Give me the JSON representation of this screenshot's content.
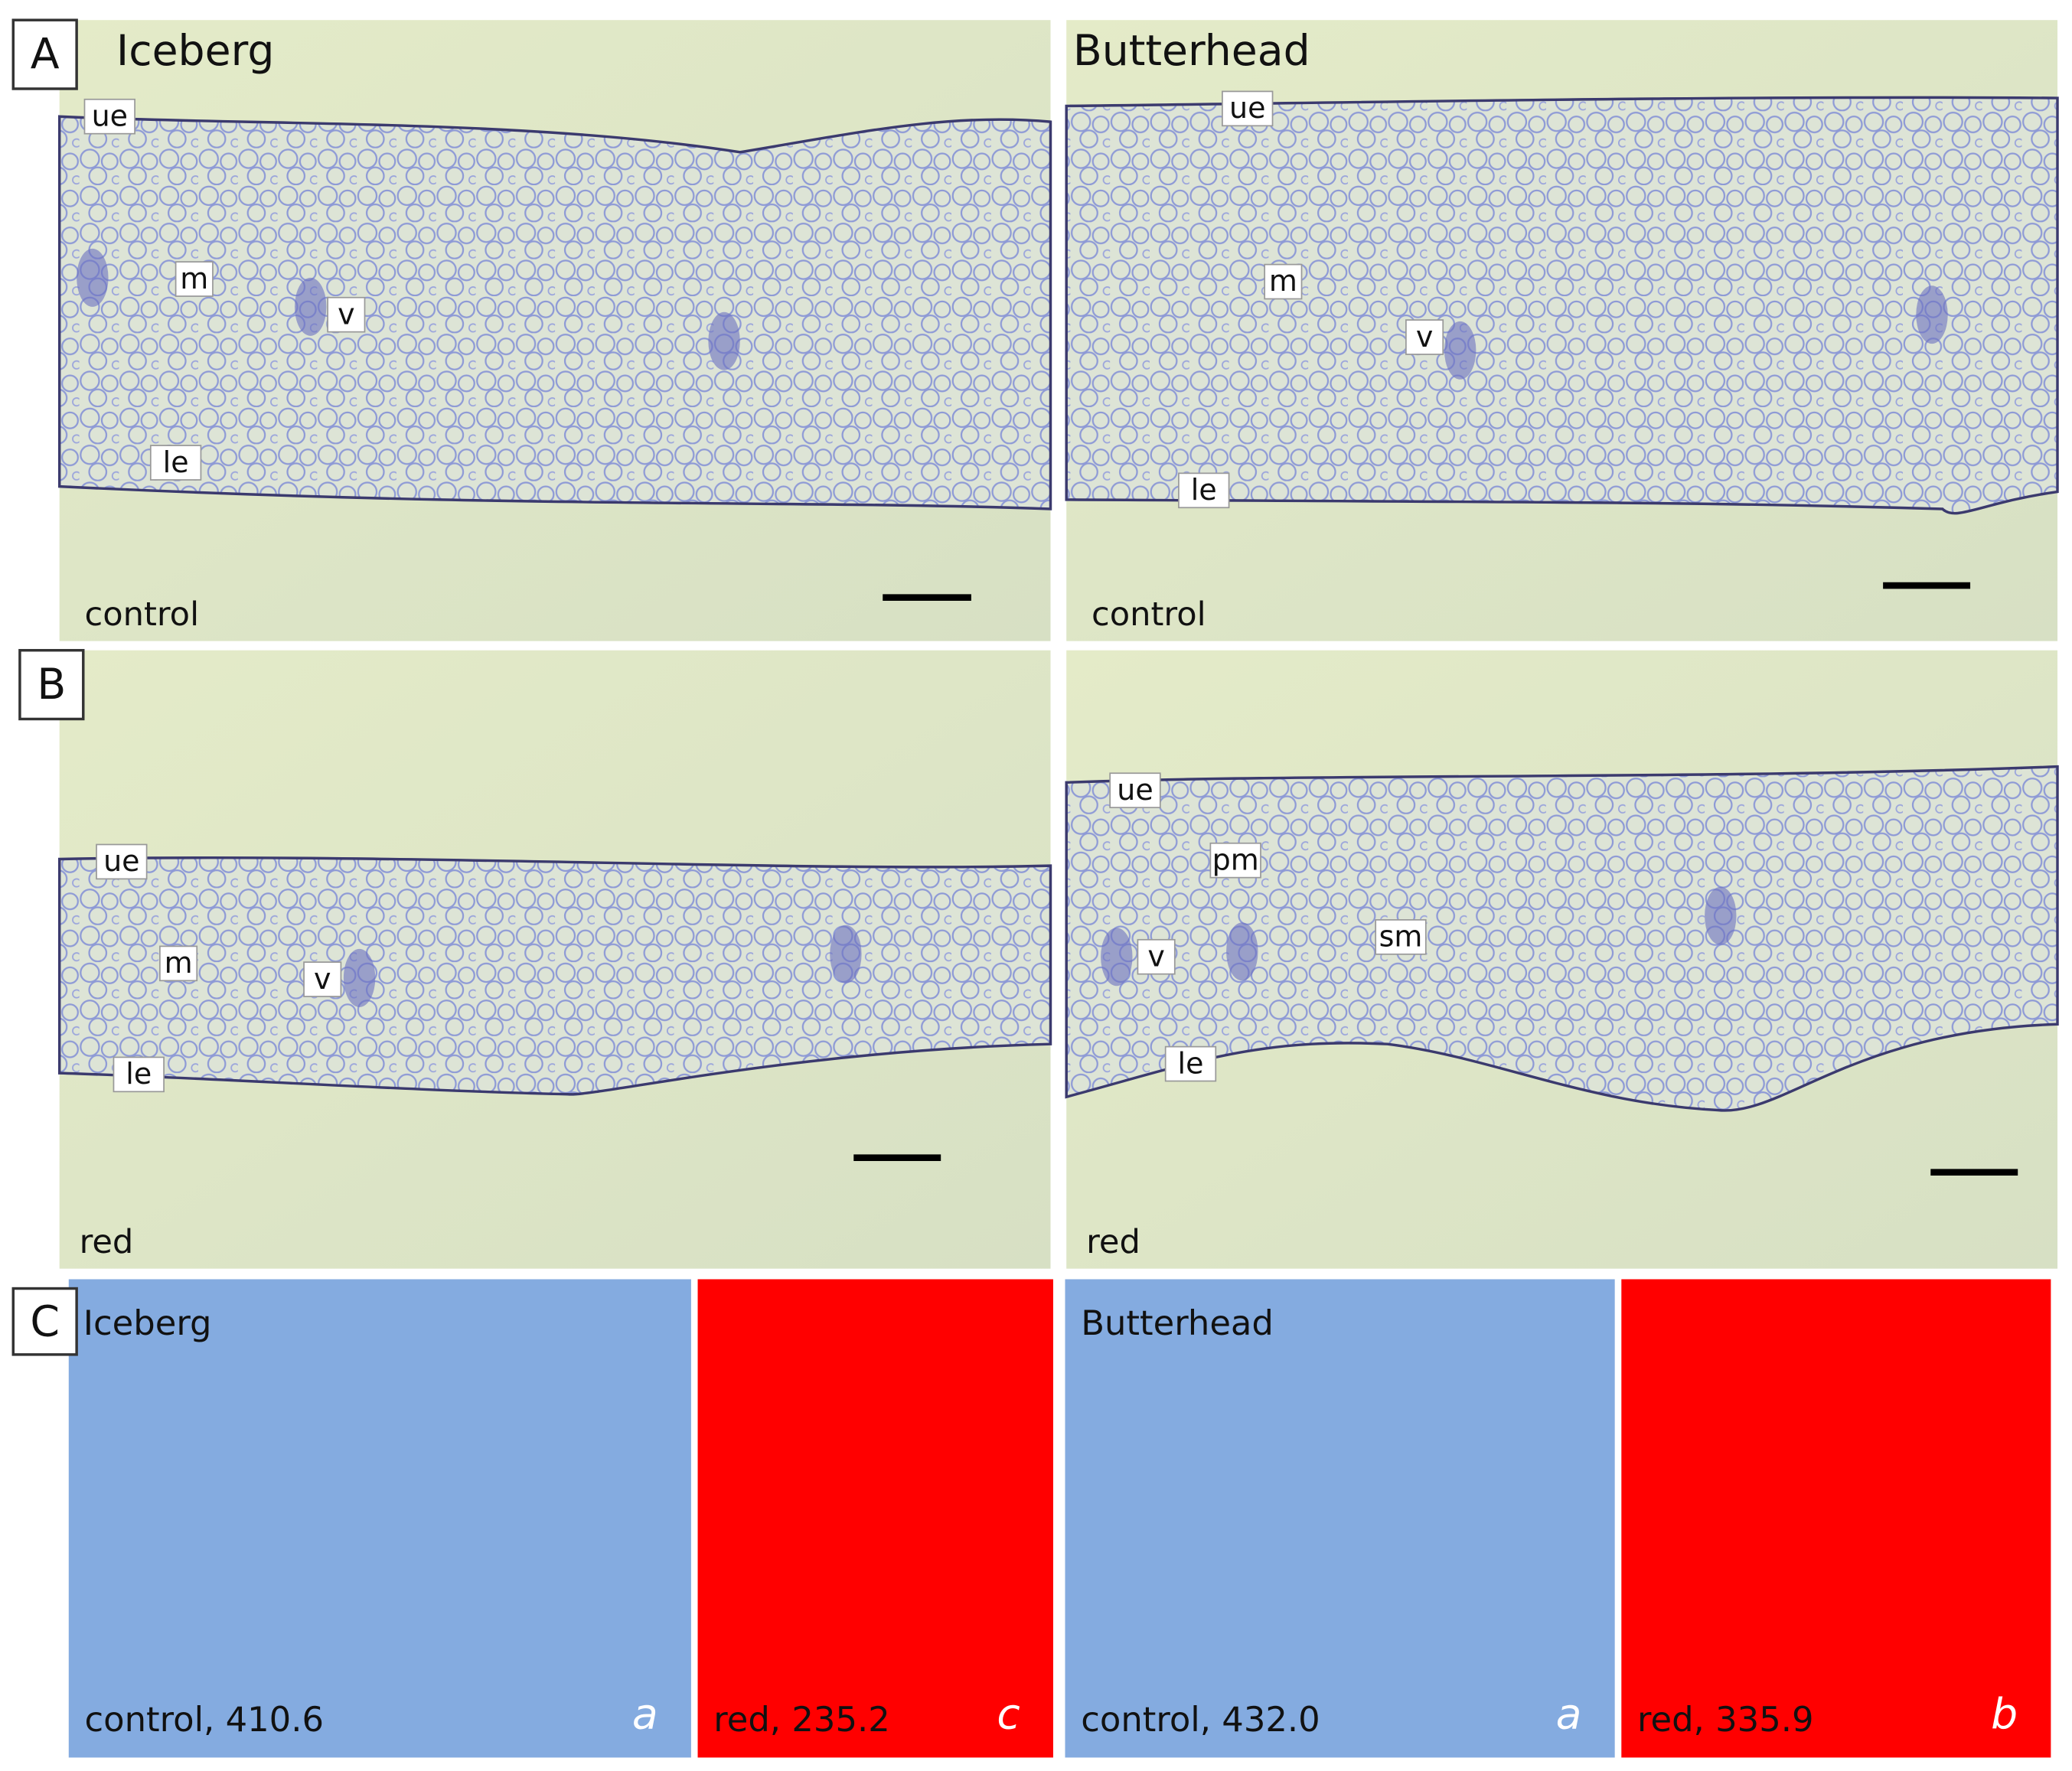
{
  "panels": [
    {
      "id": "A",
      "images": [
        {
          "title": "Iceberg",
          "condition": "control",
          "labels": [
            "ue",
            "m",
            "v",
            "le"
          ]
        },
        {
          "title": "Butterhead",
          "condition": "control",
          "labels": [
            "ue",
            "m",
            "v",
            "le"
          ]
        }
      ]
    },
    {
      "id": "B",
      "images": [
        {
          "condition": "red",
          "labels": [
            "ue",
            "m",
            "v",
            "le"
          ]
        },
        {
          "condition": "red",
          "labels": [
            "ue",
            "pm",
            "sm",
            "v",
            "le"
          ]
        }
      ]
    }
  ],
  "summary": {
    "id": "C",
    "cultivars": [
      {
        "name": "Iceberg",
        "blocks": [
          {
            "text": "control, 410.6",
            "letter": "a"
          },
          {
            "text": "red, 235.2",
            "letter": "c"
          }
        ]
      },
      {
        "name": "Butterhead",
        "blocks": [
          {
            "text": "control, 432.0",
            "letter": "a"
          },
          {
            "text": "red, 335.9",
            "letter": "b"
          }
        ]
      }
    ]
  }
}
